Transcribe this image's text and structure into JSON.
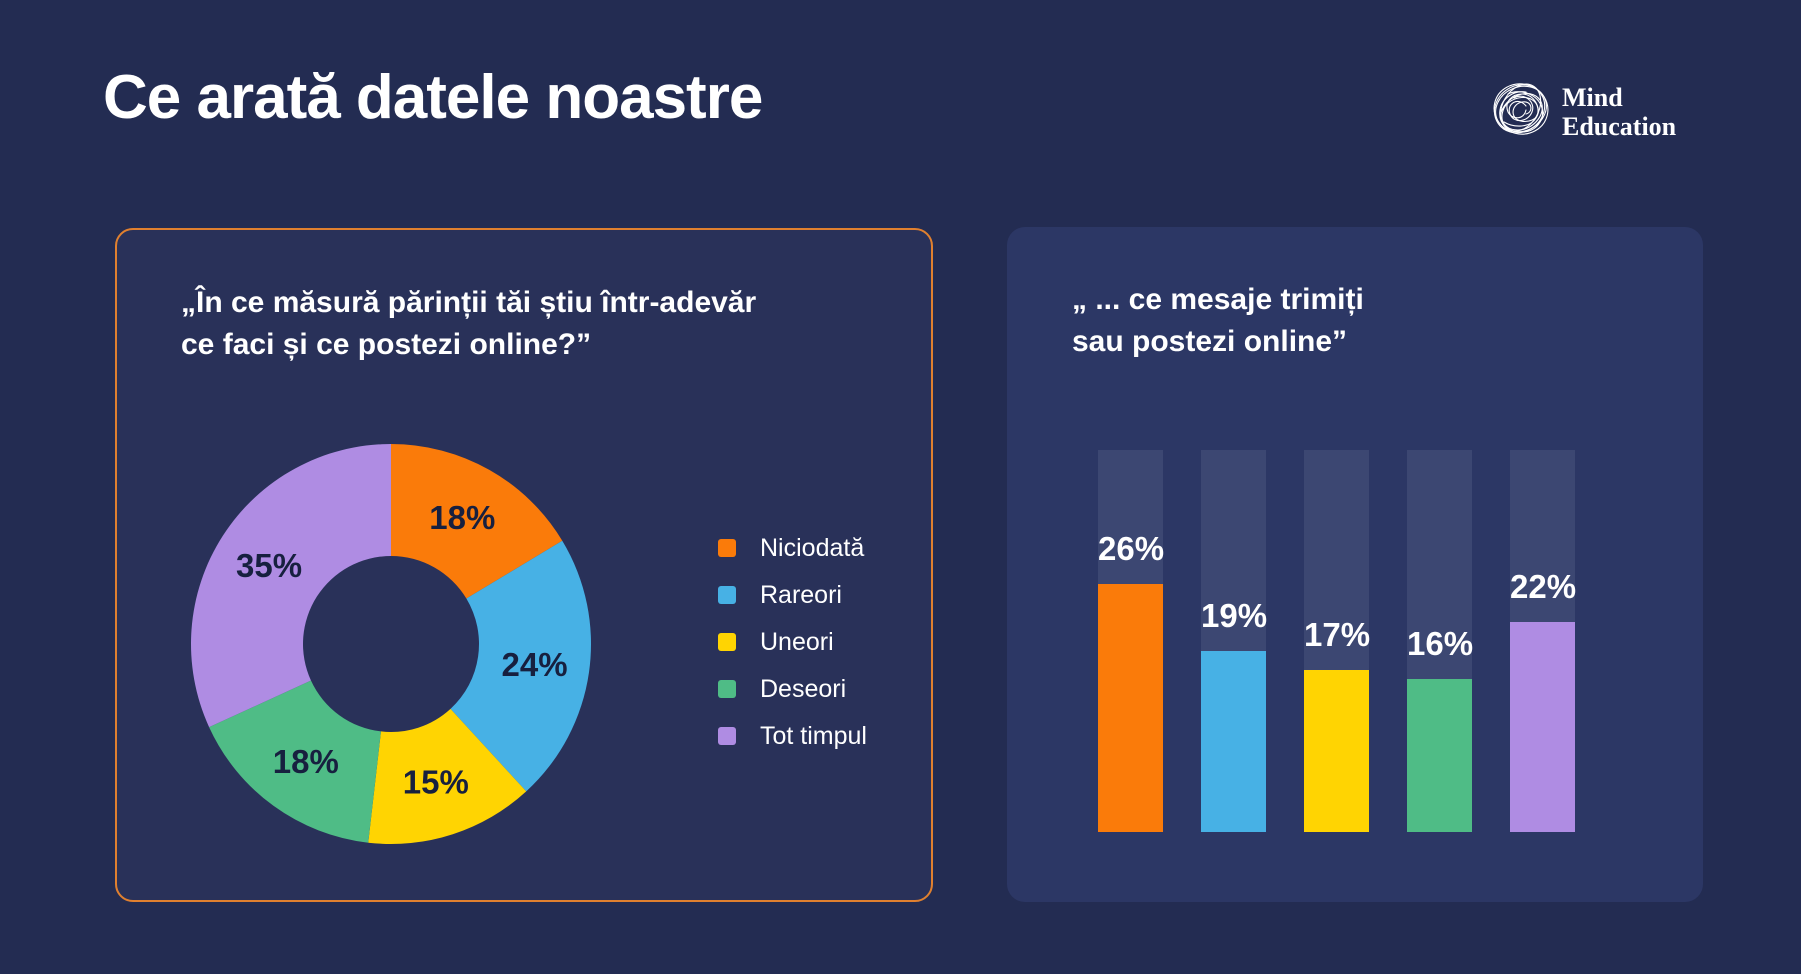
{
  "header": {
    "title": "Ce arată datele noastre",
    "logo": {
      "line1": "Mind",
      "line2": "Education"
    }
  },
  "colors": {
    "page_bg": "#232C52",
    "donut_panel_bg": "#293159",
    "bars_panel_bg": "#2C3765",
    "panel_border": "#E0802F",
    "bar_track": "#3C4772",
    "donut_label": "#17203F",
    "text": "#FFFFFF"
  },
  "panels": {
    "donut": {
      "question_line1": "„În ce măsură părinții tăi știu într-adevăr",
      "question_line2": "ce faci și ce postezi online?”"
    },
    "bars": {
      "question_line1": "„ ... ce mesaje trimiți",
      "question_line2": "sau postezi online”"
    }
  },
  "chart_data": [
    {
      "type": "pie",
      "variant": "donut",
      "title": "„În ce măsură părinții tăi știu într-adevăr ce faci și ce postezi online?”",
      "categories": [
        "Niciodată",
        "Rareori",
        "Uneori",
        "Deseori",
        "Tot timpul"
      ],
      "values": [
        18,
        24,
        15,
        18,
        35
      ],
      "labels": [
        "18%",
        "24%",
        "15%",
        "18%",
        "35%"
      ],
      "unit": "%",
      "colors": [
        "#FA7B0A",
        "#47B1E5",
        "#FFD402",
        "#4FBC86",
        "#AF8CE3"
      ],
      "legend_position": "right",
      "start_angle_deg": 0,
      "note": "labels sum to 110%; slice angles are drawn normalized to 360°"
    },
    {
      "type": "bar",
      "title": "„ ... ce mesaje trimiți sau postezi online”",
      "categories": [
        "Niciodată",
        "Rareori",
        "Uneori",
        "Deseori",
        "Tot timpul"
      ],
      "values": [
        26,
        19,
        17,
        16,
        22
      ],
      "labels": [
        "26%",
        "19%",
        "17%",
        "16%",
        "22%"
      ],
      "unit": "%",
      "colors": [
        "#FA7B0A",
        "#47B1E5",
        "#FFD402",
        "#4FBC86",
        "#AF8CE3"
      ],
      "ylim": [
        0,
        40
      ],
      "track_max": 40,
      "grid": false,
      "legend_position": "none"
    }
  ]
}
